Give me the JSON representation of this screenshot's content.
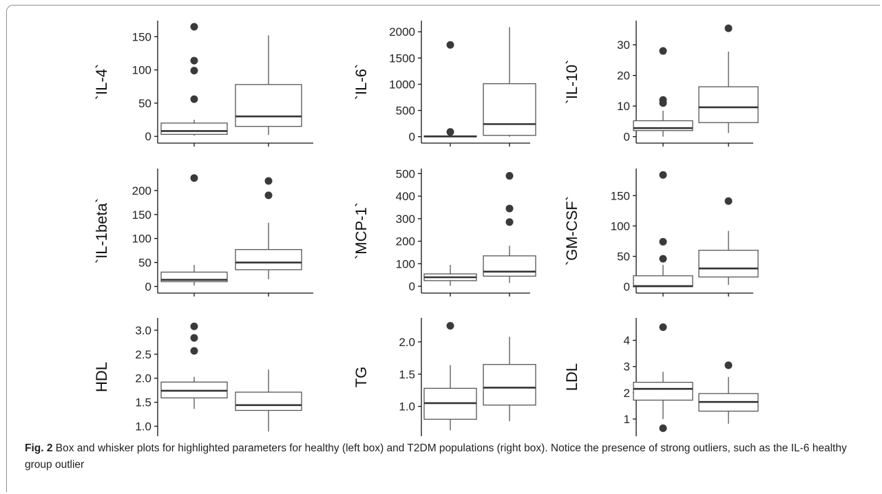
{
  "caption": {
    "label": "Fig. 2",
    "text": "Box and whisker plots for highlighted parameters for healthy (left box) and T2DM populations (right box). Notice the presence of strong outliers, such as the IL-6 healthy group outlier"
  },
  "colors": {
    "box_stroke": "#555555",
    "median": "#333333",
    "outlier": "#3a3a3a",
    "axis": "#111111"
  },
  "chart_data": [
    {
      "type": "box",
      "ylabel": "`IL-4`",
      "yticks": [
        0,
        50,
        100,
        150
      ],
      "ylim": [
        -6,
        170
      ],
      "groups": [
        {
          "group": "healthy (left box)",
          "low": 1,
          "q1": 3,
          "median": 8,
          "q3": 20,
          "high": 25,
          "outliers": [
            56,
            99,
            114,
            165
          ]
        },
        {
          "group": "T2DM (right box)",
          "low": 2,
          "q1": 15,
          "median": 30,
          "q3": 78,
          "high": 152,
          "outliers": []
        }
      ]
    },
    {
      "type": "box",
      "ylabel": "`IL-6`",
      "yticks": [
        0,
        500,
        1000,
        1500,
        2000
      ],
      "ylim": [
        -70,
        2160
      ],
      "groups": [
        {
          "group": "healthy (left box)",
          "low": 0,
          "q1": 0,
          "median": 5,
          "q3": 15,
          "high": 25,
          "outliers": [
            90,
            1750
          ]
        },
        {
          "group": "T2DM (right box)",
          "low": 0,
          "q1": 25,
          "median": 240,
          "q3": 1010,
          "high": 2090,
          "outliers": []
        }
      ]
    },
    {
      "type": "box",
      "ylabel": "`IL-10`",
      "yticks": [
        0,
        10,
        20,
        30
      ],
      "ylim": [
        -1.2,
        37
      ],
      "groups": [
        {
          "group": "healthy (left box)",
          "low": 0,
          "q1": 2,
          "median": 2.8,
          "q3": 5.2,
          "high": 8.5,
          "outliers": [
            11,
            12,
            28
          ]
        },
        {
          "group": "T2DM (right box)",
          "low": 1.2,
          "q1": 4.6,
          "median": 9.6,
          "q3": 16.3,
          "high": 27.8,
          "outliers": [
            35.4
          ]
        }
      ]
    },
    {
      "type": "box",
      "ylabel": "`IL-1beta`",
      "yticks": [
        0,
        50,
        100,
        150,
        200
      ],
      "ylim": [
        -8,
        240
      ],
      "groups": [
        {
          "group": "healthy (left box)",
          "low": 2,
          "q1": 10,
          "median": 14,
          "q3": 30,
          "high": 45,
          "outliers": [
            226
          ]
        },
        {
          "group": "T2DM (right box)",
          "low": 15,
          "q1": 35,
          "median": 50,
          "q3": 77,
          "high": 133,
          "outliers": [
            190,
            220
          ]
        }
      ]
    },
    {
      "type": "box",
      "ylabel": "`MCP-1`",
      "yticks": [
        0,
        100,
        200,
        300,
        400,
        500
      ],
      "ylim": [
        -18,
        510
      ],
      "groups": [
        {
          "group": "healthy (left box)",
          "low": 2,
          "q1": 25,
          "median": 40,
          "q3": 55,
          "high": 95,
          "outliers": []
        },
        {
          "group": "T2DM (right box)",
          "low": 15,
          "q1": 45,
          "median": 65,
          "q3": 135,
          "high": 180,
          "outliers": [
            285,
            345,
            490
          ]
        }
      ]
    },
    {
      "type": "box",
      "ylabel": "`GM-CSF`",
      "yticks": [
        0,
        50,
        100,
        150
      ],
      "ylim": [
        -6,
        190
      ],
      "groups": [
        {
          "group": "healthy (left box)",
          "low": 0,
          "q1": 0,
          "median": 1,
          "q3": 18,
          "high": 36,
          "outliers": [
            46,
            74,
            184
          ]
        },
        {
          "group": "T2DM (right box)",
          "low": 3,
          "q1": 16,
          "median": 30,
          "q3": 60,
          "high": 92,
          "outliers": [
            141
          ]
        }
      ]
    },
    {
      "type": "box",
      "ylabel": "HDL",
      "yticks": [
        1.0,
        1.5,
        2.0,
        2.5,
        3.0
      ],
      "ylim": [
        0.85,
        3.2
      ],
      "groups": [
        {
          "group": "healthy (left box)",
          "low": 1.36,
          "q1": 1.59,
          "median": 1.74,
          "q3": 1.92,
          "high": 2.03,
          "outliers": [
            2.57,
            2.84,
            3.08
          ]
        },
        {
          "group": "T2DM (right box)",
          "low": 0.89,
          "q1": 1.33,
          "median": 1.44,
          "q3": 1.71,
          "high": 2.18,
          "outliers": []
        }
      ]
    },
    {
      "type": "box",
      "ylabel": "TG",
      "yticks": [
        1.0,
        1.5,
        2.0
      ],
      "ylim": [
        0.58,
        2.33
      ],
      "groups": [
        {
          "group": "healthy (left box)",
          "low": 0.63,
          "q1": 0.8,
          "median": 1.05,
          "q3": 1.28,
          "high": 1.64,
          "outliers": [
            2.25
          ]
        },
        {
          "group": "T2DM (right box)",
          "low": 0.77,
          "q1": 1.02,
          "median": 1.29,
          "q3": 1.65,
          "high": 2.08,
          "outliers": []
        }
      ]
    },
    {
      "type": "box",
      "ylabel": "LDL",
      "yticks": [
        1,
        2,
        3,
        4
      ],
      "ylim": [
        0.45,
        4.75
      ],
      "groups": [
        {
          "group": "healthy (left box)",
          "low": 1.0,
          "q1": 1.72,
          "median": 2.15,
          "q3": 2.4,
          "high": 2.8,
          "outliers": [
            0.65,
            4.5
          ]
        },
        {
          "group": "T2DM (right box)",
          "low": 0.82,
          "q1": 1.3,
          "median": 1.65,
          "q3": 1.97,
          "high": 2.6,
          "outliers": [
            3.05
          ]
        }
      ]
    }
  ]
}
